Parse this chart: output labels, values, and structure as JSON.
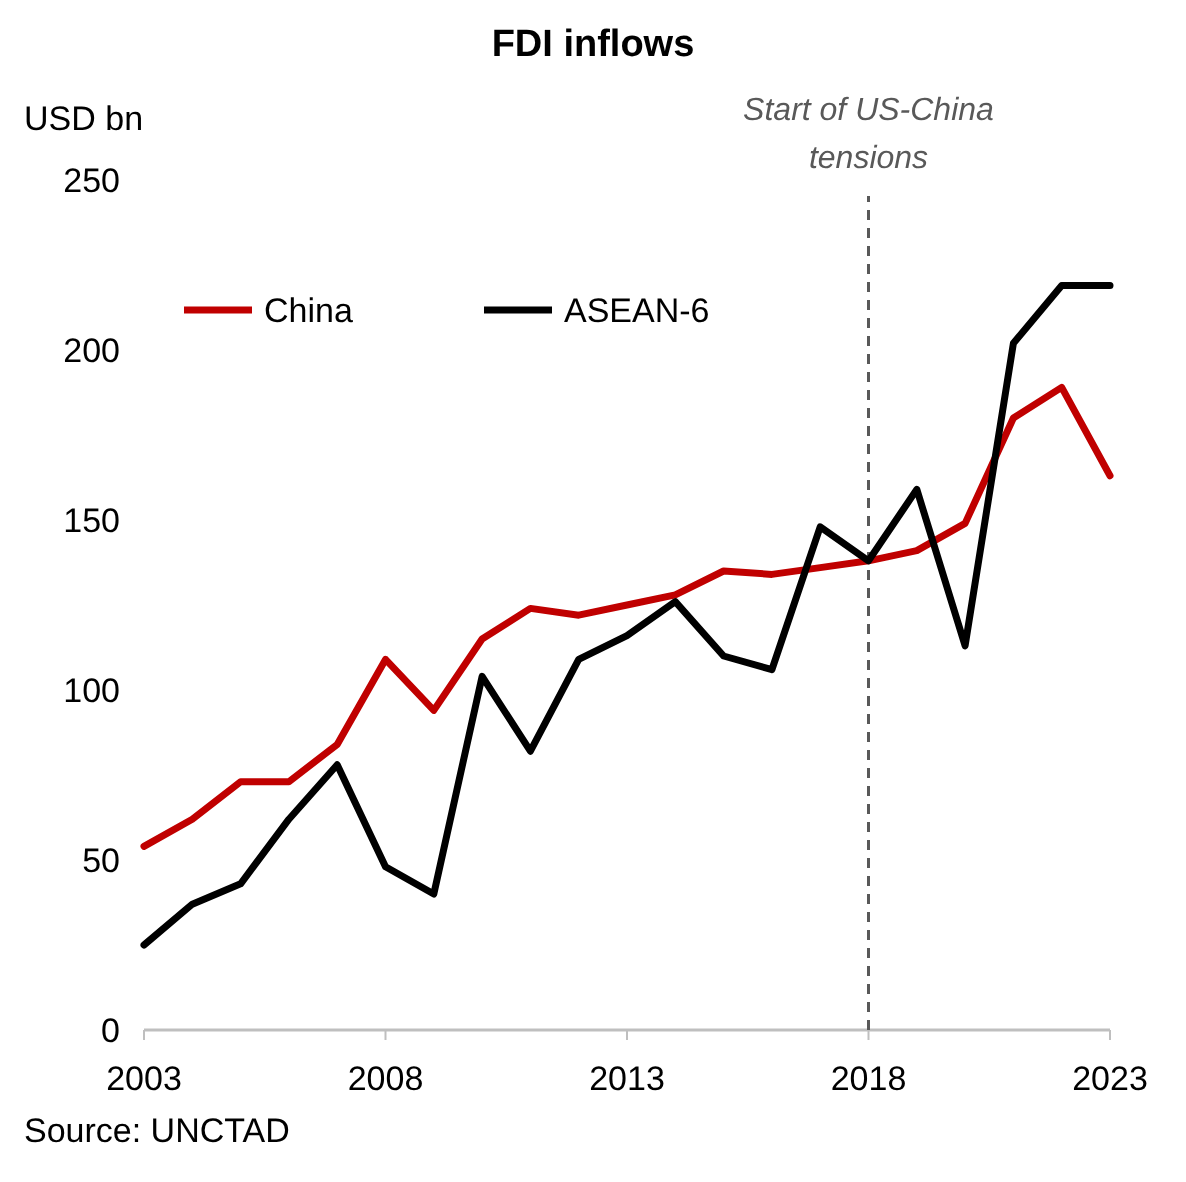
{
  "chart_data": {
    "type": "line",
    "title": "FDI inflows",
    "ylabel": "USD bn",
    "x": [
      2003,
      2004,
      2005,
      2006,
      2007,
      2008,
      2009,
      2010,
      2011,
      2012,
      2013,
      2014,
      2015,
      2016,
      2017,
      2018,
      2019,
      2020,
      2021,
      2022,
      2023
    ],
    "series": [
      {
        "name": "China",
        "color": "#c00000",
        "values": [
          54,
          62,
          73,
          73,
          84,
          109,
          94,
          115,
          124,
          122,
          125,
          128,
          135,
          134,
          136,
          138,
          141,
          149,
          180,
          189,
          163
        ]
      },
      {
        "name": "ASEAN-6",
        "color": "#000000",
        "values": [
          25,
          37,
          43,
          62,
          78,
          48,
          40,
          104,
          82,
          109,
          116,
          126,
          110,
          106,
          148,
          138,
          159,
          113,
          202,
          219,
          219
        ]
      }
    ],
    "xlim": [
      2003,
      2023
    ],
    "xticks": [
      2003,
      2008,
      2013,
      2018,
      2023
    ],
    "ylim": [
      0,
      250
    ],
    "yticks": [
      0,
      50,
      100,
      150,
      200,
      250
    ],
    "ref_lines": [
      {
        "axis": "x",
        "value": 2018,
        "label": "Start of US-China tensions",
        "color": "#595959",
        "line_style": "dashed"
      }
    ],
    "annotations": [
      "Source: UNCTAD"
    ],
    "legend": "top left",
    "grid": false,
    "marker": "none",
    "line_style": "solid"
  }
}
